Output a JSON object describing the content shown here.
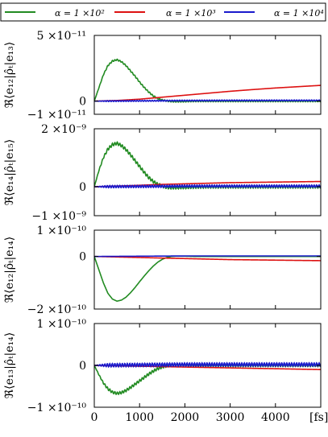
{
  "legend": [
    {
      "label": "α = 1 ×10²",
      "color": "#228b22"
    },
    {
      "label": "α = 1 ×10³",
      "color": "#dd1111"
    },
    {
      "label": "α = 1 ×10⁴",
      "color": "#1a1acc"
    }
  ],
  "x_unit": "[fs]",
  "chart_data": [
    {
      "type": "line",
      "ylabel": "ℜ⟨e₁₂|ρ̂ₜ|e₁₃⟩",
      "xlim": [
        0,
        5000
      ],
      "ylim": [
        -1e-11,
        5e-11
      ],
      "yticks": [
        {
          "v": 5e-11,
          "label": "5 ×10⁻¹¹"
        },
        {
          "v": 0,
          "label": "0"
        },
        {
          "v": -1e-11,
          "label": "−1 ×10⁻¹¹"
        }
      ],
      "series": [
        {
          "name": "α = 1 ×10²",
          "color": "#228b22",
          "x": [
            0,
            100,
            200,
            300,
            400,
            500,
            600,
            700,
            800,
            900,
            1000,
            1100,
            1200,
            1300,
            1400,
            1500,
            1600,
            1700,
            1800,
            2000,
            2200,
            2500,
            3000,
            3500,
            4000,
            4500,
            5000
          ],
          "y": [
            0,
            1e-11,
            2e-11,
            2.7e-11,
            3.05e-11,
            3.15e-11,
            3e-11,
            2.7e-11,
            2.3e-11,
            1.9e-11,
            1.45e-11,
            1.05e-11,
            7e-12,
            4e-12,
            2e-12,
            8e-13,
            2e-13,
            -2e-13,
            -3e-13,
            -2e-13,
            0,
            0,
            0,
            0,
            0,
            0,
            0
          ],
          "ripple": 5e-13
        },
        {
          "name": "α = 1 ×10³",
          "color": "#dd1111",
          "x": [
            0,
            500,
            1000,
            1500,
            2000,
            2500,
            3000,
            3500,
            4000,
            4500,
            5000
          ],
          "y": [
            0,
            5e-13,
            1.5e-12,
            3e-12,
            4.5e-12,
            6e-12,
            7.5e-12,
            8.8e-12,
            1e-11,
            1.1e-11,
            1.2e-11
          ],
          "ripple": 0
        },
        {
          "name": "α = 1 ×10⁴",
          "color": "#1a1acc",
          "x": [
            0,
            1000,
            2000,
            3000,
            4000,
            5000
          ],
          "y": [
            0,
            2e-13,
            4e-13,
            5e-13,
            5e-13,
            5e-13
          ],
          "ripple": 4e-13
        }
      ]
    },
    {
      "type": "line",
      "ylabel": "ℜ⟨e₁₄|ρ̂ₜ|e₁₅⟩",
      "xlim": [
        0,
        5000
      ],
      "ylim": [
        -1e-09,
        2e-09
      ],
      "yticks": [
        {
          "v": 2e-09,
          "label": "2 ×10⁻⁹"
        },
        {
          "v": 0,
          "label": "0"
        },
        {
          "v": -1e-09,
          "label": "−1 ×10⁻⁹"
        }
      ],
      "series": [
        {
          "name": "α = 1 ×10²",
          "color": "#228b22",
          "x": [
            0,
            100,
            200,
            300,
            400,
            500,
            600,
            700,
            800,
            900,
            1000,
            1100,
            1200,
            1300,
            1400,
            1500,
            1600,
            1700,
            1800,
            2000,
            2200,
            2500,
            3000,
            3500,
            4000,
            4500,
            5000
          ],
          "y": [
            0,
            5.5e-10,
            1e-09,
            1.3e-09,
            1.45e-09,
            1.5e-09,
            1.42e-09,
            1.28e-09,
            1.1e-09,
            9e-10,
            7e-10,
            5e-10,
            3.2e-10,
            1.8e-10,
            8e-11,
            2e-11,
            -2e-11,
            -3e-11,
            -3e-11,
            -2e-11,
            -1e-11,
            0,
            0,
            0,
            0,
            0,
            0
          ],
          "ripple": 5e-11
        },
        {
          "name": "α = 1 ×10³",
          "color": "#dd1111",
          "x": [
            0,
            500,
            1000,
            1500,
            2000,
            2500,
            3000,
            3500,
            4000,
            4500,
            5000
          ],
          "y": [
            0,
            2e-11,
            5e-11,
            8e-11,
            1e-10,
            1.2e-10,
            1.4e-10,
            1.5e-10,
            1.6e-10,
            1.7e-10,
            1.8e-10
          ],
          "ripple": 0
        },
        {
          "name": "α = 1 ×10⁴",
          "color": "#1a1acc",
          "x": [
            0,
            1000,
            2000,
            3000,
            4000,
            5000
          ],
          "y": [
            0,
            1e-11,
            2e-11,
            2e-11,
            2e-11,
            2e-11
          ],
          "ripple": 4e-11
        }
      ]
    },
    {
      "type": "line",
      "ylabel": "ℜ⟨e₁₂|ρ̂ₜ|e₁₄⟩",
      "xlim": [
        0,
        5000
      ],
      "ylim": [
        -2e-10,
        1e-10
      ],
      "yticks": [
        {
          "v": 1e-10,
          "label": "1 ×10⁻¹⁰"
        },
        {
          "v": 0,
          "label": "0"
        },
        {
          "v": -2e-10,
          "label": "−2 ×10⁻¹⁰"
        }
      ],
      "series": [
        {
          "name": "α = 1 ×10²",
          "color": "#228b22",
          "x": [
            0,
            100,
            200,
            300,
            400,
            500,
            600,
            700,
            800,
            900,
            1000,
            1100,
            1200,
            1300,
            1400,
            1500,
            1600,
            1700,
            1800,
            2000,
            2200,
            2500,
            3000,
            3500,
            4000,
            4500,
            5000
          ],
          "y": [
            0,
            -5e-11,
            -1e-10,
            -1.4e-10,
            -1.62e-10,
            -1.7e-10,
            -1.66e-10,
            -1.55e-10,
            -1.38e-10,
            -1.18e-10,
            -9.6e-11,
            -7.5e-11,
            -5.5e-11,
            -3.7e-11,
            -2.2e-11,
            -1.1e-11,
            -4e-12,
            0,
            1e-12,
            1e-12,
            0,
            0,
            0,
            0,
            0,
            0,
            0
          ],
          "ripple": 0
        },
        {
          "name": "α = 1 ×10³",
          "color": "#dd1111",
          "x": [
            0,
            500,
            1000,
            1500,
            2000,
            2500,
            3000,
            3500,
            4000,
            4500,
            5000
          ],
          "y": [
            0,
            -2e-12,
            -4e-12,
            -6e-12,
            -8e-12,
            -1e-11,
            -1.2e-11,
            -1.3e-11,
            -1.4e-11,
            -1.5e-11,
            -1.6e-11
          ],
          "ripple": 0
        },
        {
          "name": "α = 1 ×10⁴",
          "color": "#1a1acc",
          "x": [
            0,
            1000,
            2000,
            3000,
            4000,
            5000
          ],
          "y": [
            0,
            1e-12,
            2e-12,
            2e-12,
            2e-12,
            2e-12
          ],
          "ripple": 0
        }
      ]
    },
    {
      "type": "line",
      "ylabel": "ℜ⟨e₁₃|ρ̂ₜ|e₁₄⟩",
      "xlim": [
        0,
        5000
      ],
      "ylim": [
        -1e-10,
        1e-10
      ],
      "xticks": [
        0,
        1000,
        2000,
        3000,
        4000
      ],
      "yticks": [
        {
          "v": 1e-10,
          "label": "1 ×10⁻¹⁰"
        },
        {
          "v": 0,
          "label": "0"
        },
        {
          "v": -1e-10,
          "label": "−1 ×10⁻¹⁰"
        }
      ],
      "series": [
        {
          "name": "α = 1 ×10²",
          "color": "#228b22",
          "x": [
            0,
            100,
            200,
            300,
            400,
            500,
            600,
            700,
            800,
            900,
            1000,
            1100,
            1200,
            1300,
            1400,
            1500,
            1600,
            1700,
            1800,
            2000,
            2200,
            2500,
            3000,
            3500,
            4000,
            4500,
            5000
          ],
          "y": [
            0,
            -2.2e-11,
            -4.2e-11,
            -5.6e-11,
            -6.4e-11,
            -6.7e-11,
            -6.5e-11,
            -6e-11,
            -5.3e-11,
            -4.5e-11,
            -3.7e-11,
            -2.9e-11,
            -2.1e-11,
            -1.4e-11,
            -8e-12,
            -4e-12,
            -1e-12,
            1e-12,
            1e-12,
            1e-12,
            0,
            0,
            0,
            0,
            0,
            0,
            0
          ],
          "ripple": 3e-12
        },
        {
          "name": "α = 1 ×10³",
          "color": "#dd1111",
          "x": [
            0,
            500,
            1000,
            1500,
            2000,
            2500,
            3000,
            3500,
            4000,
            4500,
            5000
          ],
          "y": [
            0,
            -1e-12,
            -2e-12,
            -3e-12,
            -4e-12,
            -5e-12,
            -6e-12,
            -7e-12,
            -8e-12,
            -9e-12,
            -1e-11
          ],
          "ripple": 0
        },
        {
          "name": "α = 1 ×10⁴",
          "color": "#1a1acc",
          "x": [
            0,
            1000,
            2000,
            3000,
            4000,
            5000
          ],
          "y": [
            0,
            1e-12,
            2e-12,
            2e-12,
            2e-12,
            2e-12
          ],
          "ripple": 4e-12
        }
      ]
    }
  ]
}
